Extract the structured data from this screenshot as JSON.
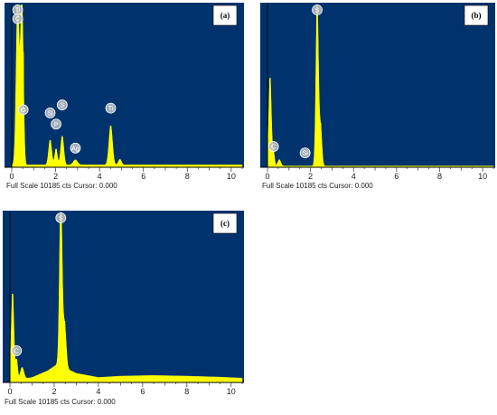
{
  "colors": {
    "background": "#00336e",
    "spectrum": "#ffff00",
    "marker_fill": "#bfc3c8"
  },
  "chart_data": [
    {
      "type": "area",
      "panel_label": "(a)",
      "xlim": [
        0,
        10.5
      ],
      "ylim": [
        0,
        10185
      ],
      "xticks": [
        "0",
        "2",
        "4",
        "6",
        "8",
        "10"
      ],
      "footer": "Full Scale 10185 cts Cursor: 0.000",
      "peaks": [
        {
          "x": 0.27,
          "y": 10185,
          "w": 0.07
        },
        {
          "x": 0.45,
          "y": 9000,
          "w": 0.06
        },
        {
          "x": 0.52,
          "y": 2500,
          "w": 0.05
        },
        {
          "x": 1.75,
          "y": 1550,
          "w": 0.07
        },
        {
          "x": 2.02,
          "y": 1000,
          "w": 0.06
        },
        {
          "x": 2.3,
          "y": 1800,
          "w": 0.07
        },
        {
          "x": 2.9,
          "y": 320,
          "w": 0.1
        },
        {
          "x": 4.51,
          "y": 2450,
          "w": 0.08
        },
        {
          "x": 4.93,
          "y": 350,
          "w": 0.07
        }
      ],
      "background_level": 150,
      "elements": [
        {
          "label": "Ti",
          "x": 0.27,
          "y": 10185
        },
        {
          "label": "C",
          "x": 0.27,
          "y": 9300
        },
        {
          "label": "O",
          "x": 0.52,
          "y": 3600
        },
        {
          "label": "Si",
          "x": 1.75,
          "y": 3400
        },
        {
          "label": "P",
          "x": 2.02,
          "y": 2700
        },
        {
          "label": "S",
          "x": 2.3,
          "y": 3900
        },
        {
          "label": "Ag",
          "x": 2.9,
          "y": 1200
        },
        {
          "label": "Ti",
          "x": 4.51,
          "y": 3700
        }
      ]
    },
    {
      "type": "area",
      "panel_label": "(b)",
      "xlim": [
        0,
        10.5
      ],
      "ylim": [
        0,
        10185
      ],
      "xticks": [
        "0",
        "2",
        "4",
        "6",
        "8",
        "10"
      ],
      "footer": "Full Scale 10185 cts Cursor: 0.000",
      "peaks": [
        {
          "x": 0.12,
          "y": 5500,
          "w": 0.06
        },
        {
          "x": 0.28,
          "y": 850,
          "w": 0.05
        },
        {
          "x": 0.55,
          "y": 400,
          "w": 0.07
        },
        {
          "x": 2.31,
          "y": 10185,
          "w": 0.06
        },
        {
          "x": 2.47,
          "y": 2400,
          "w": 0.06
        }
      ],
      "background_level": 80,
      "elements": [
        {
          "label": "S",
          "x": 2.31,
          "y": 10185
        },
        {
          "label": "C",
          "x": 0.28,
          "y": 1300
        },
        {
          "label": "Si",
          "x": 1.75,
          "y": 900
        }
      ]
    },
    {
      "type": "area",
      "panel_label": "(c)",
      "xlim": [
        0,
        10.5
      ],
      "ylim": [
        0,
        10185
      ],
      "xticks": [
        "0",
        "2",
        "4",
        "6",
        "8",
        "10"
      ],
      "footer": "Full Scale 10185 cts Cursor: 0.000",
      "peaks": [
        {
          "x": 0.12,
          "y": 5200,
          "w": 0.06
        },
        {
          "x": 0.3,
          "y": 1200,
          "w": 0.05
        },
        {
          "x": 0.55,
          "y": 700,
          "w": 0.08
        },
        {
          "x": 2.3,
          "y": 10185,
          "w": 0.06
        },
        {
          "x": 2.47,
          "y": 2600,
          "w": 0.07
        }
      ],
      "continuum": [
        [
          0,
          80
        ],
        [
          1,
          300
        ],
        [
          1.7,
          700
        ],
        [
          2.15,
          1100
        ],
        [
          3,
          550
        ],
        [
          4,
          300
        ],
        [
          5,
          380
        ],
        [
          6.5,
          420
        ],
        [
          8,
          380
        ],
        [
          9.5,
          320
        ],
        [
          10.5,
          260
        ]
      ],
      "background_level": 0,
      "elements": [
        {
          "label": "S",
          "x": 2.3,
          "y": 10185
        },
        {
          "label": "C",
          "x": 0.3,
          "y": 1900
        }
      ]
    }
  ]
}
